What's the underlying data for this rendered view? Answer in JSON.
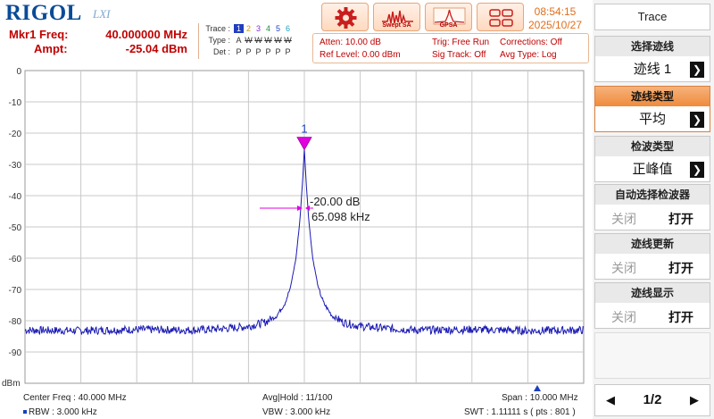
{
  "header": {
    "brand": "RIGOL",
    "brand_suffix": "LXI",
    "marker": {
      "freq_label": "Mkr1 Freq:",
      "freq_value": "40.000000 MHz",
      "ampt_label": "Ampt:",
      "ampt_value": "-25.04 dBm"
    },
    "trace_table": {
      "trace_label": "Trace :",
      "type_label": "Type :",
      "det_label": "Det :",
      "numbers": [
        "1",
        "2",
        "3",
        "4",
        "5",
        "6"
      ],
      "types": [
        "A",
        "W",
        "W",
        "W",
        "W",
        "W"
      ],
      "dets": [
        "P",
        "P",
        "P",
        "P",
        "P",
        "P"
      ],
      "number_colors": [
        "#1f3fbf",
        "#c8a000",
        "#8a2be2",
        "#1f8f3f",
        "#1f3fbf",
        "#1f9fbf"
      ]
    },
    "settings": {
      "atten": "Atten: 10.00 dB",
      "ref_level": "Ref Level: 0.00 dBm",
      "trig": "Trig: Free Run",
      "sig_track": "Sig Track: Off",
      "corrections": "Corrections: Off",
      "avg_type": "Avg Type: Log"
    },
    "toolbar": {
      "settings_icon": "gear-icon",
      "swept_label": "Swept SA",
      "gpsa_label": "GPSA",
      "layout_icon": "grid-layout-icon"
    },
    "clock": {
      "time": "08:54:15",
      "date": "2025/10/27"
    }
  },
  "plot": {
    "y_unit": "dBm"
  },
  "chart_data": {
    "type": "line",
    "title": "",
    "xlabel": "",
    "ylabel": "dBm",
    "x_unit": "MHz",
    "xlim": [
      35.0,
      45.0
    ],
    "ylim": [
      -100,
      0
    ],
    "yticks": [
      0,
      -10,
      -20,
      -30,
      -40,
      -50,
      -60,
      -70,
      -80,
      -90
    ],
    "grid": true,
    "noise_floor_dbm": -83,
    "series": [
      {
        "color": "#1a1ab4",
        "x": [
          35.0,
          36.0,
          37.0,
          38.0,
          38.6,
          39.0,
          39.3,
          39.5,
          39.65,
          39.75,
          39.85,
          39.92,
          39.97,
          40.0,
          40.03,
          40.08,
          40.15,
          40.25,
          40.35,
          40.5,
          40.7,
          41.0,
          41.5,
          42.0,
          43.0,
          44.0,
          45.0
        ],
        "y": [
          -83,
          -83.2,
          -82.8,
          -83,
          -82.5,
          -81.8,
          -80.5,
          -78.5,
          -74.5,
          -69.5,
          -60,
          -48,
          -35,
          -25.04,
          -35,
          -48,
          -60,
          -69.5,
          -74.5,
          -78.5,
          -80.5,
          -81.8,
          -82.5,
          -83,
          -82.8,
          -83.2,
          -83
        ]
      }
    ],
    "annotations": [
      {
        "text": "1",
        "x": 40.0,
        "y": -25.04
      },
      {
        "text": "-20.00 dB",
        "x": 40.0,
        "y": -44
      },
      {
        "text": "65.098 kHz",
        "x": 40.0,
        "y": -44
      }
    ]
  },
  "footer": {
    "center_freq": "Center Freq : 40.000 MHz",
    "rbw": "RBW : 3.000 kHz",
    "avg_hold": "Avg|Hold : 11/100",
    "vbw": "VBW : 3.000 kHz",
    "span": "Span : 10.000 MHz",
    "swt": "SWT : 1.11111 s ( pts : 801 )"
  },
  "panel": {
    "title": "Trace",
    "items": [
      {
        "label": "选择迹线",
        "value": "迹线 1"
      },
      {
        "label": "迹线类型",
        "value": "平均"
      },
      {
        "label": "检波类型",
        "value": "正峰值"
      }
    ],
    "toggles": [
      {
        "label": "自动选择检波器",
        "off": "关闭",
        "on": "打开"
      },
      {
        "label": "迹线更新",
        "off": "关闭",
        "on": "打开"
      },
      {
        "label": "迹线显示",
        "off": "关闭",
        "on": "打开"
      }
    ],
    "page": "1/2"
  }
}
